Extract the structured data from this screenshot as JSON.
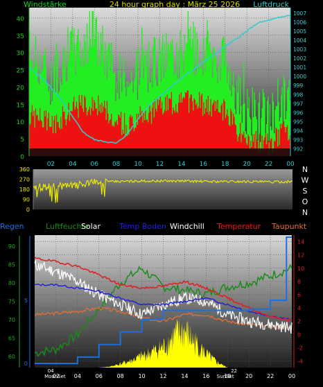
{
  "chart_data": [
    {
      "type": "line",
      "title": "24 hour graph day : März 25 2026",
      "left_axis_label": "Windstärke",
      "right_axis_label": "Luftdruck",
      "left_ticks": [
        0,
        5,
        10,
        15,
        20,
        25,
        30,
        35,
        40
      ],
      "left_ylim": [
        0,
        43
      ],
      "right_ticks": [
        992,
        993,
        994,
        995,
        996,
        997,
        998,
        999,
        1000,
        1001,
        1002,
        1003,
        1004,
        1005,
        1006,
        1007
      ],
      "right_ylim": [
        991.2,
        1007.6
      ],
      "x_ticks": [
        "02",
        "04",
        "06",
        "08",
        "10",
        "12",
        "14",
        "16",
        "18",
        "20",
        "22",
        "00"
      ],
      "colors": {
        "gust": "#22ee22",
        "wind": "#ee1111",
        "pressure": "#33cccc",
        "left_axis": "#22cc22",
        "right_axis": "#33cccc",
        "title": "#dddd00"
      },
      "series": [
        {
          "key": "gust",
          "x": [
            0,
            1,
            2,
            3,
            4,
            5,
            6,
            7,
            8,
            9,
            10,
            11,
            12,
            13,
            14,
            15,
            16,
            17,
            18,
            19,
            20,
            21,
            22,
            23,
            24
          ],
          "values": [
            30,
            28,
            22,
            28,
            31,
            32,
            35,
            30,
            23,
            22,
            24,
            26,
            28,
            30,
            30,
            30,
            31,
            29,
            27,
            20,
            13,
            12,
            11,
            15,
            19
          ]
        },
        {
          "key": "wind",
          "x": [
            0,
            1,
            2,
            3,
            4,
            5,
            6,
            7,
            8,
            9,
            10,
            11,
            12,
            13,
            14,
            15,
            16,
            17,
            18,
            19,
            20,
            21,
            22,
            23,
            24
          ],
          "values": [
            12,
            11,
            9,
            11,
            14,
            15,
            15,
            14,
            10,
            9,
            11,
            12,
            14,
            15,
            16,
            16,
            15,
            14,
            13,
            8,
            4,
            4,
            3,
            6,
            8
          ]
        },
        {
          "key": "pressure",
          "x": [
            0,
            1,
            2,
            3,
            4,
            5,
            6,
            7,
            8,
            9,
            10,
            11,
            12,
            13,
            14,
            15,
            16,
            17,
            18,
            19,
            20,
            21,
            22,
            23,
            24
          ],
          "values": [
            1001.0,
            1000.0,
            998.8,
            997.3,
            995.5,
            993.8,
            993.0,
            992.8,
            992.6,
            993.6,
            995.3,
            996.8,
            997.8,
            998.8,
            999.8,
            1000.7,
            1001.6,
            1002.4,
            1003.3,
            1004.1,
            1005.0,
            1005.9,
            1006.2,
            1006.5,
            1006.8
          ]
        }
      ]
    },
    {
      "type": "line",
      "left_ticks": [
        0,
        90,
        180,
        270,
        360
      ],
      "ylim": [
        0,
        360
      ],
      "direction_labels": [
        "N",
        "W",
        "S",
        "O",
        "N"
      ],
      "colors": {
        "direction": "#eeee00"
      },
      "series": [
        {
          "key": "direction",
          "x": [
            0,
            2,
            4,
            6,
            8,
            10,
            12,
            14,
            16,
            18,
            20,
            22,
            24
          ],
          "values": [
            200,
            205,
            215,
            245,
            250,
            255,
            255,
            255,
            250,
            250,
            250,
            245,
            250
          ]
        }
      ]
    },
    {
      "type": "line",
      "legend": [
        "Regen",
        "Luftfeuchte",
        "Solar",
        "Temp Boden",
        "Windchill",
        "Temperatur",
        "Taupunkt"
      ],
      "left_ticks_humidity": [
        60,
        65,
        70,
        75,
        80,
        85,
        90
      ],
      "left_ticks_rain": [
        0,
        5
      ],
      "right_ticks": [
        -4,
        -2,
        0,
        2,
        4,
        6,
        8,
        10,
        12,
        14
      ],
      "temp_ylim": [
        -5,
        15
      ],
      "humidity_ylim": [
        57,
        93
      ],
      "rain_ylim": [
        0,
        10
      ],
      "x_ticks": [
        "02",
        "04",
        "06",
        "08",
        "10",
        "12",
        "14",
        "16",
        "18",
        "20",
        "22",
        "00"
      ],
      "annotations": [
        "MoonSet",
        "04",
        "SunSet",
        "22"
      ],
      "colors": {
        "regen": "#1c6fe0",
        "luftfeuchte": "#1a8a1a",
        "solar": "#ffff00",
        "temp_boden": "#2222dd",
        "windchill": "#ffffff",
        "temperatur": "#dd2222",
        "taupunkt": "#e0703a"
      },
      "series": [
        {
          "key": "temperatur",
          "x": [
            0,
            2,
            4,
            6,
            8,
            10,
            12,
            14,
            16,
            18,
            20,
            22,
            24
          ],
          "values": [
            11.5,
            11.0,
            10.3,
            9.0,
            7.5,
            7.0,
            7.3,
            8.0,
            7.0,
            5.5,
            4.0,
            2.7,
            2.1
          ]
        },
        {
          "key": "windchill",
          "x": [
            0,
            2,
            4,
            6,
            8,
            10,
            12,
            14,
            16,
            18,
            20,
            22,
            24
          ],
          "values": [
            10.5,
            9.5,
            8.0,
            6.0,
            4.5,
            3.0,
            4.5,
            5.5,
            5.0,
            3.0,
            2.0,
            1.5,
            1.0
          ]
        },
        {
          "key": "temp_boden",
          "x": [
            0,
            2,
            4,
            6,
            8,
            10,
            12,
            14,
            16,
            18,
            20,
            22,
            24
          ],
          "values": [
            7.5,
            7.5,
            7.0,
            6.5,
            5.5,
            4.5,
            4.5,
            5.0,
            5.5,
            4.5,
            3.5,
            2.8,
            2.2
          ]
        },
        {
          "key": "taupunkt",
          "x": [
            0,
            2,
            4,
            6,
            8,
            10,
            12,
            14,
            16,
            18,
            20,
            22,
            24
          ],
          "values": [
            3.0,
            3.2,
            3.5,
            4.0,
            3.5,
            2.5,
            2.0,
            3.0,
            3.0,
            2.0,
            1.5,
            1.2,
            1.0
          ]
        },
        {
          "key": "luftfeuchte",
          "x": [
            0,
            2,
            4,
            6,
            8,
            10,
            12,
            14,
            16,
            18,
            20,
            22,
            24
          ],
          "values": [
            61,
            62,
            66,
            73,
            80,
            84,
            79,
            78,
            77,
            79,
            80,
            82,
            84
          ]
        },
        {
          "key": "regen",
          "x": [
            0,
            2,
            4,
            6,
            8,
            10,
            12,
            14,
            16,
            18,
            20,
            22,
            23.5,
            24
          ],
          "values": [
            0,
            0,
            0.5,
            1.5,
            2.5,
            3.5,
            4.2,
            4.2,
            4.2,
            4.2,
            4.3,
            5.0,
            10.0,
            10.0
          ]
        },
        {
          "key": "solar",
          "x": [
            6,
            7,
            8,
            9,
            10,
            11,
            12,
            13,
            14,
            15,
            16,
            17,
            18
          ],
          "values": [
            0,
            2,
            8,
            15,
            25,
            35,
            45,
            70,
            80,
            55,
            30,
            12,
            0
          ]
        }
      ]
    }
  ]
}
